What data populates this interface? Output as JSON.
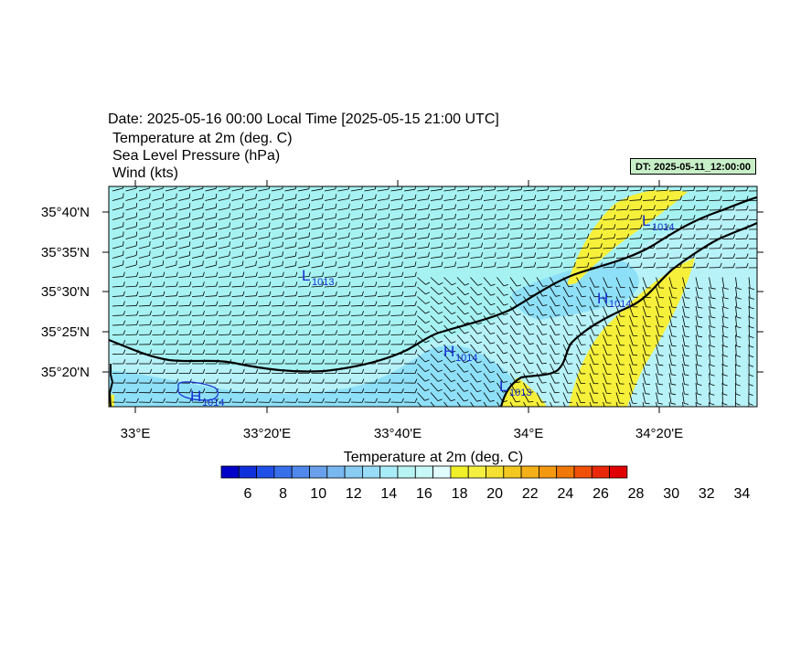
{
  "header": {
    "date_line": "Date: 2025-05-16  00:00 Local Time [2025-05-15  21:00 UTC]",
    "var_lines": [
      "Temperature at 2m   (deg. C)",
      "Sea Level Pressure   (hPa)",
      "Wind   (kts)"
    ],
    "dt_badge": "DT: 2025-05-11_12:00:00"
  },
  "map": {
    "lat_labels": [
      "35°40'N",
      "35°35'N",
      "35°30'N",
      "35°25'N",
      "35°20'N"
    ],
    "lon_labels": [
      "33°E",
      "33°20'E",
      "33°40'E",
      "34°E",
      "34°20'E"
    ],
    "pressure_centers": [
      {
        "type": "L",
        "value": "1013"
      },
      {
        "type": "L",
        "value": "1014"
      },
      {
        "type": "H",
        "value": "1014"
      },
      {
        "type": "H",
        "value": "1014"
      },
      {
        "type": "L",
        "value": "1013"
      },
      {
        "type": "H",
        "value": "1014"
      }
    ],
    "colors": {
      "sea": "#a6f2f2",
      "land_light": "#c6f6f6",
      "cool": "#8ee0f8",
      "warm": "#f6f03a",
      "coast": "#000000"
    }
  },
  "colorbar": {
    "title": "Temperature at 2m  (deg. C)",
    "labels": [
      "6",
      "8",
      "10",
      "12",
      "14",
      "16",
      "18",
      "20",
      "22",
      "24",
      "26",
      "28",
      "30",
      "32",
      "34"
    ],
    "colors": [
      "#0000c8",
      "#1030dc",
      "#2050e8",
      "#3870ec",
      "#5088ec",
      "#68a0ec",
      "#78b8f0",
      "#88ccf4",
      "#98dcf8",
      "#a8ecf8",
      "#b8f4f4",
      "#c8f8f8",
      "#e0fcfc",
      "#f0f028",
      "#f4f040",
      "#f4e030",
      "#f4c820",
      "#f4b018",
      "#f49810",
      "#f07808",
      "#f05008",
      "#e82808",
      "#e00000"
    ]
  }
}
